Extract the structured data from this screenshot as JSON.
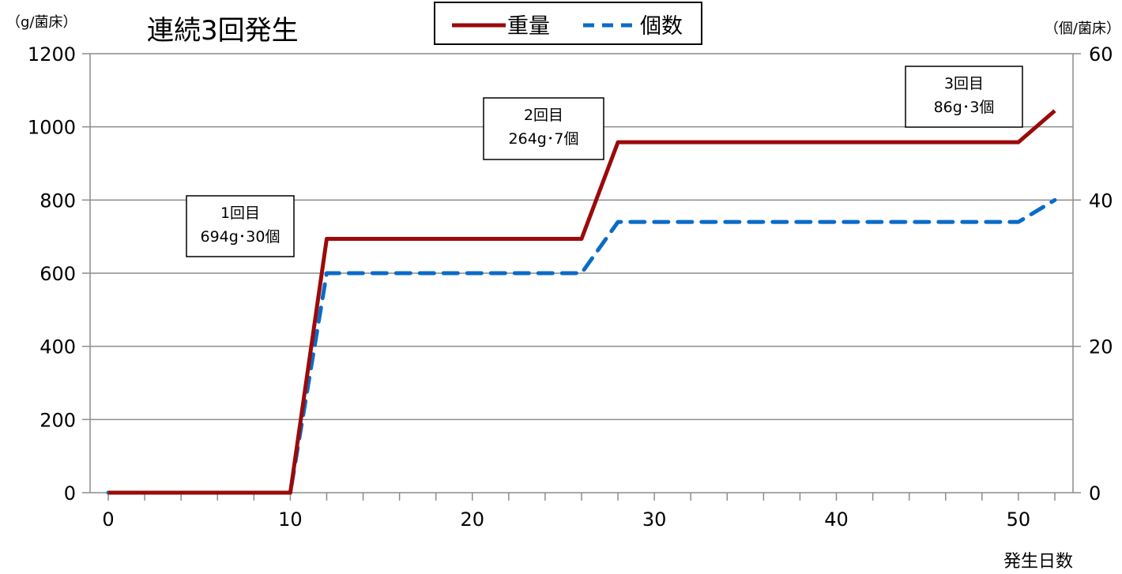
{
  "chart_data": {
    "type": "line",
    "title": "連続3回発生",
    "xlabel": "発生日数",
    "ylabel_left": "（g/菌床）",
    "ylabel_right": "（個/菌床）",
    "xlim": [
      -1,
      53
    ],
    "xticks": [
      0,
      10,
      20,
      30,
      40,
      50
    ],
    "ylim_left": [
      0,
      1200
    ],
    "yticks_left": [
      0,
      200,
      400,
      600,
      800,
      1000,
      1200
    ],
    "ylim_right": [
      0,
      60
    ],
    "yticks_right": [
      0,
      20,
      40,
      60
    ],
    "grid": true,
    "legend_position": "top-center",
    "series": [
      {
        "name": "重量",
        "axis": "left",
        "style": "solid",
        "color": "#9b0a0a",
        "x": [
          0,
          10,
          12,
          26,
          28,
          50,
          52
        ],
        "y": [
          0,
          0,
          694,
          694,
          958,
          958,
          1044
        ]
      },
      {
        "name": "個数",
        "axis": "right",
        "style": "dashed",
        "color": "#0b6bc8",
        "x": [
          0,
          10,
          12,
          26,
          28,
          50,
          52
        ],
        "y": [
          0,
          0,
          30,
          30,
          37,
          37,
          40
        ]
      }
    ],
    "annotations": [
      {
        "lines": [
          "1回目",
          "694g･30個"
        ]
      },
      {
        "lines": [
          "2回目",
          "264g･7個"
        ]
      },
      {
        "lines": [
          "3回目",
          "86g･3個"
        ]
      }
    ]
  }
}
